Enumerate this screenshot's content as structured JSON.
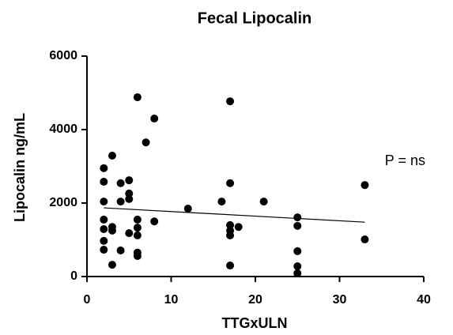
{
  "chart_data": {
    "type": "scatter",
    "title": "Fecal Lipocalin",
    "x_label": "TTGxULN",
    "y_label": "Lipocalin  ng/mL",
    "annotation": "P = ns",
    "xlim": [
      0,
      40
    ],
    "xticks": [
      0,
      10,
      20,
      30,
      40
    ],
    "ylim": [
      0,
      6000
    ],
    "yticks": [
      0,
      2000,
      4000,
      6000
    ],
    "color": "#000000",
    "x": [
      2,
      2,
      2,
      2,
      2,
      2,
      2,
      3,
      3,
      3,
      3,
      4,
      4,
      4,
      5,
      5,
      5,
      5,
      6,
      6,
      6,
      6,
      6,
      6,
      7,
      8,
      8,
      12,
      16,
      17,
      17,
      17,
      17,
      17,
      17,
      18,
      21,
      25,
      25,
      25,
      25,
      25,
      33,
      33
    ],
    "values": [
      2950,
      2580,
      2040,
      1550,
      1290,
      970,
      730,
      3290,
      1350,
      1250,
      320,
      2540,
      2040,
      710,
      2620,
      2260,
      2110,
      1180,
      4880,
      1550,
      1330,
      1120,
      650,
      560,
      3650,
      4300,
      1500,
      1850,
      2040,
      4770,
      2540,
      1400,
      1250,
      1120,
      300,
      1350,
      2040,
      1610,
      1380,
      690,
      280,
      90,
      2490,
      1010
    ],
    "fit": {
      "x": [
        2,
        33
      ],
      "values": [
        1870,
        1480
      ]
    }
  }
}
